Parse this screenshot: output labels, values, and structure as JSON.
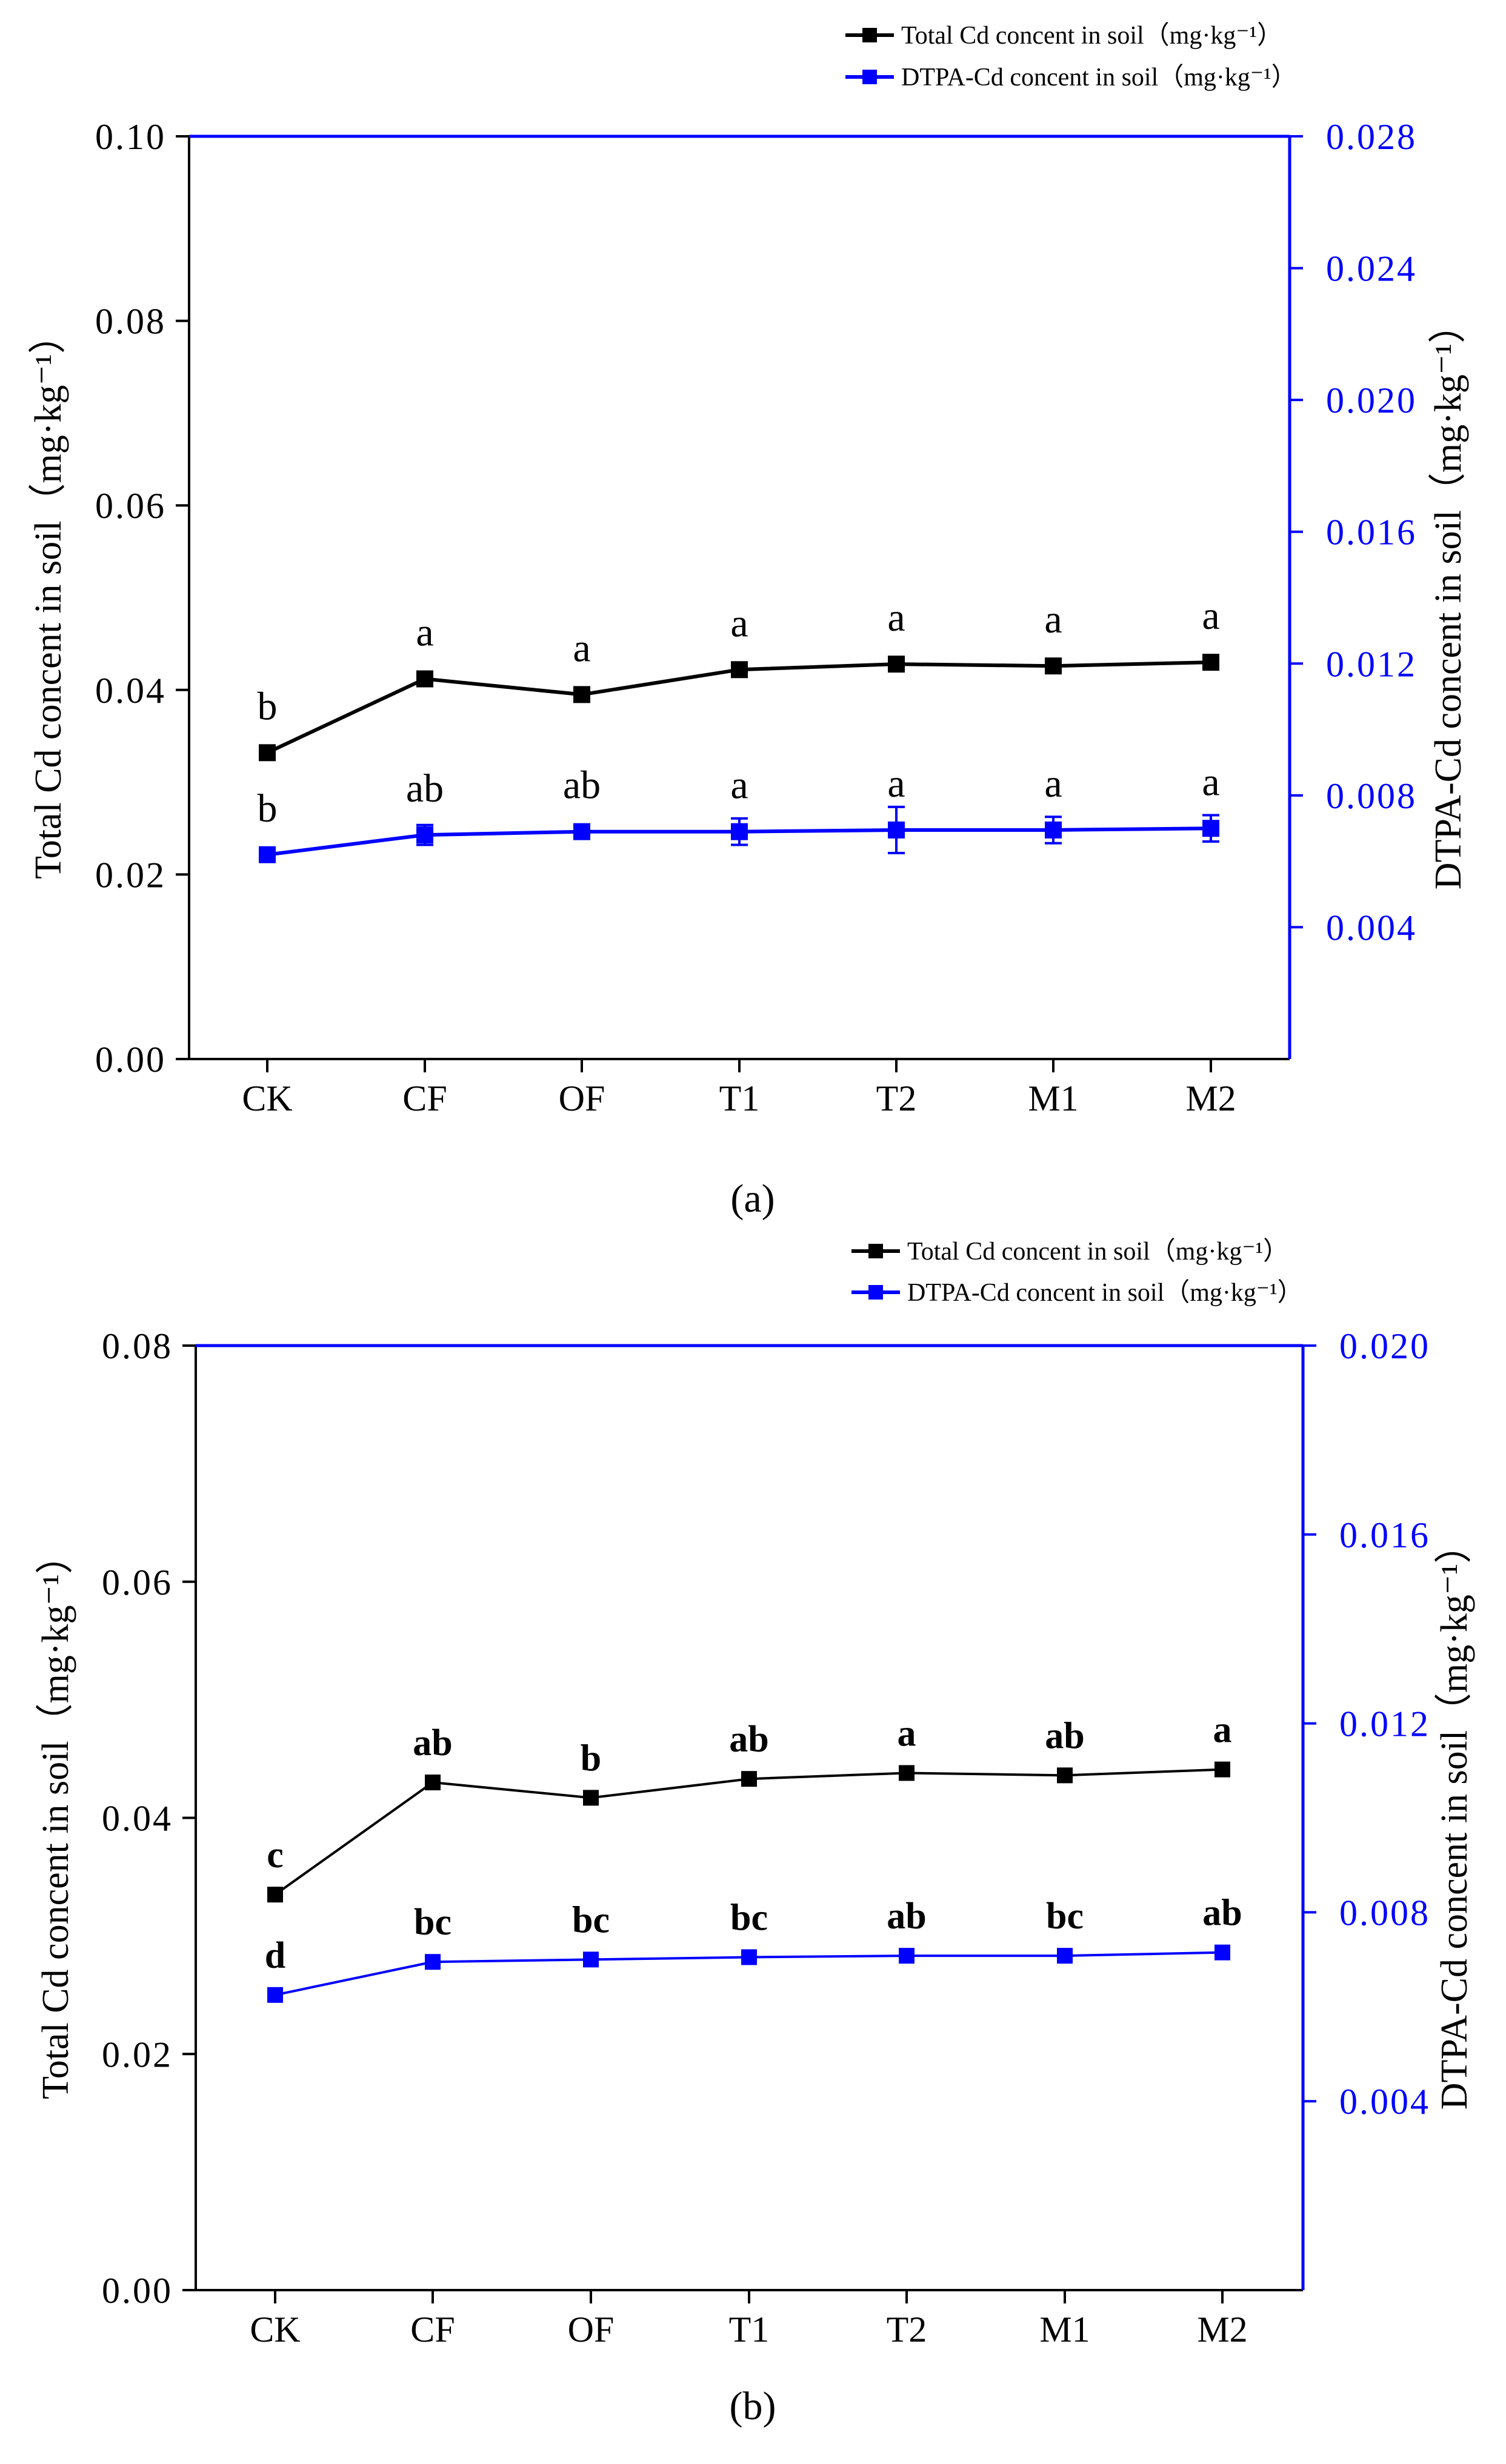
{
  "figure": {
    "panels": [
      "(a)",
      "(b)"
    ]
  },
  "chart_data": [
    {
      "panel": "a",
      "type": "line",
      "panel_label": "(a)",
      "title": "",
      "categories": [
        "CK",
        "CF",
        "OF",
        "T1",
        "T2",
        "M1",
        "M2"
      ],
      "xlabel": "",
      "ylabel_left": "Total Cd concent in soil（mg·kg⁻¹）",
      "ylabel_right": "DTPA-Cd concent in soil（mg·kg⁻¹）",
      "ylim_left": [
        0,
        0.1
      ],
      "ylim_right": [
        0,
        0.028
      ],
      "yticks_left": [
        "0.00",
        "0.02",
        "0.04",
        "0.06",
        "0.08",
        "0.10"
      ],
      "yticks_right": [
        "0.004",
        "0.008",
        "0.012",
        "0.016",
        "0.020",
        "0.024",
        "0.028"
      ],
      "legend_position": "top-right",
      "grid": false,
      "letter_style": "normal",
      "series": [
        {
          "name": "Total Cd concent in soil（mg·kg⁻¹）",
          "axis": "left",
          "color": "#000000",
          "marker": "square",
          "values": [
            0.0332,
            0.0412,
            0.0395,
            0.0422,
            0.0428,
            0.0426,
            0.043
          ],
          "letters": [
            "b",
            "a",
            "a",
            "a",
            "a",
            "a",
            "a"
          ]
        },
        {
          "name": "DTPA-Cd concent in soil（mg·kg⁻¹）",
          "axis": "right",
          "color": "#0000ff",
          "marker": "square",
          "values": [
            0.0062,
            0.0068,
            0.0069,
            0.0069,
            0.00695,
            0.00695,
            0.007
          ],
          "errors": [
            0.0002,
            0.0003,
            0.0002,
            0.0004,
            0.0007,
            0.0004,
            0.0004
          ],
          "letters": [
            "b",
            "ab",
            "ab",
            "a",
            "a",
            "a",
            "a"
          ]
        }
      ]
    },
    {
      "panel": "b",
      "type": "line",
      "panel_label": "(b)",
      "title": "",
      "categories": [
        "CK",
        "CF",
        "OF",
        "T1",
        "T2",
        "M1",
        "M2"
      ],
      "xlabel": "",
      "ylabel_left": "Total Cd concent in soil（mg·kg⁻¹）",
      "ylabel_right": "DTPA-Cd concent in soil（mg·kg⁻¹）",
      "ylim_left": [
        0,
        0.08
      ],
      "ylim_right": [
        0,
        0.02
      ],
      "yticks_left": [
        "0.00",
        "0.02",
        "0.04",
        "0.06",
        "0.08"
      ],
      "yticks_right": [
        "0.004",
        "0.008",
        "0.012",
        "0.016",
        "0.020"
      ],
      "legend_position": "top-right",
      "grid": false,
      "letter_style": "bold",
      "series": [
        {
          "name": "Total Cd concent in soil（mg·kg⁻¹）",
          "axis": "left",
          "color": "#000000",
          "marker": "square",
          "values": [
            0.0335,
            0.043,
            0.0417,
            0.0433,
            0.0438,
            0.0436,
            0.0441
          ],
          "letters": [
            "c",
            "ab",
            "b",
            "ab",
            "a",
            "ab",
            "a"
          ]
        },
        {
          "name": "DTPA-Cd concent in soil（mg·kg⁻¹）",
          "axis": "right",
          "color": "#0000ff",
          "marker": "square",
          "values": [
            0.00625,
            0.00695,
            0.007,
            0.00705,
            0.00708,
            0.00708,
            0.00715
          ],
          "letters": [
            "d",
            "bc",
            "bc",
            "bc",
            "ab",
            "bc",
            "ab"
          ]
        }
      ]
    }
  ]
}
